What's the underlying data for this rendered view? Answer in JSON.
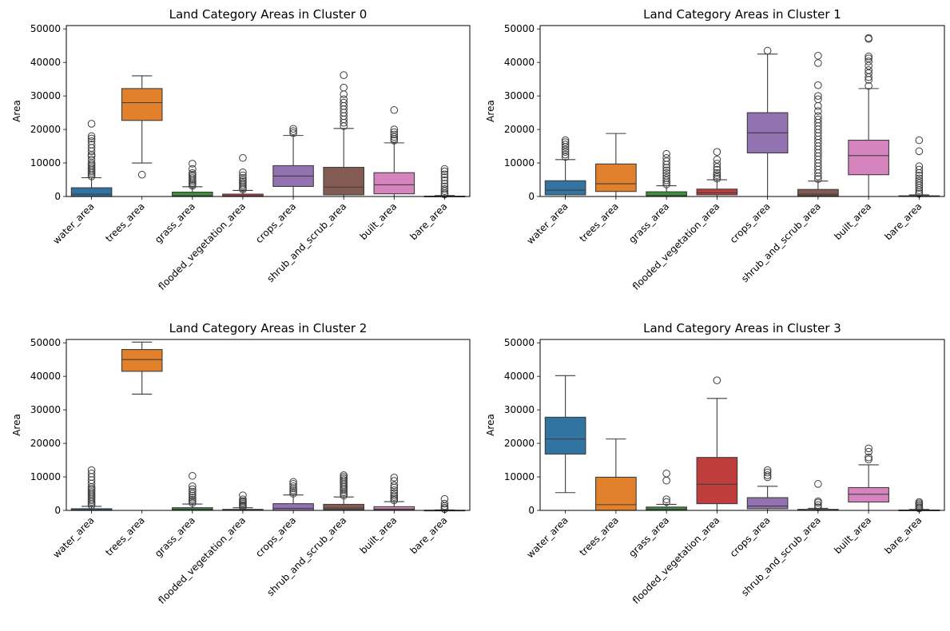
{
  "chart_data": [
    {
      "type": "box",
      "title": "Land Category Areas in Cluster 0",
      "xlabel": "",
      "ylabel": "Area",
      "ylim": [
        0,
        51000
      ],
      "yticks": [
        "0",
        "10000",
        "20000",
        "30000",
        "40000",
        "50000"
      ],
      "ytick_values": [
        0,
        10000,
        20000,
        30000,
        40000,
        50000
      ],
      "categories": [
        "water_area",
        "trees_area",
        "grass_area",
        "flooded_vegetation_area",
        "crops_area",
        "shrub_and_scrub_area",
        "built_area",
        "bare_area"
      ],
      "colors": [
        "#3274a1",
        "#e1812c",
        "#3a923a",
        "#c03d3e",
        "#9372b2",
        "#845b53",
        "#d684bd",
        "#7f7f7f"
      ],
      "boxes": [
        {
          "whisker_low": 0,
          "q1": 0,
          "median": 700,
          "q3": 2600,
          "whisker_high": 5600,
          "outliers": [
            6000,
            6500,
            7000,
            7500,
            8000,
            8500,
            9000,
            9500,
            10000,
            11000,
            12000,
            12500,
            13500,
            14500,
            15500,
            16500,
            17300,
            18000,
            21700
          ]
        },
        {
          "whisker_low": 10000,
          "q1": 22700,
          "median": 28000,
          "q3": 32200,
          "whisker_high": 36000,
          "outliers": [
            6500
          ]
        },
        {
          "whisker_low": 0,
          "q1": 0,
          "median": 200,
          "q3": 1300,
          "whisker_high": 2900,
          "outliers": [
            3200,
            3600,
            4000,
            4500,
            5000,
            5500,
            6000,
            6500,
            7000,
            8200,
            9800
          ]
        },
        {
          "whisker_low": 0,
          "q1": 0,
          "median": 150,
          "q3": 700,
          "whisker_high": 1800,
          "outliers": [
            2100,
            2500,
            3000,
            3500,
            4000,
            4500,
            5000,
            5600,
            6300,
            7200,
            11500
          ]
        },
        {
          "whisker_low": 0,
          "q1": 3000,
          "median": 6100,
          "q3": 9200,
          "whisker_high": 18200,
          "outliers": [
            18900,
            19500,
            20200
          ]
        },
        {
          "whisker_low": 0,
          "q1": 500,
          "median": 2800,
          "q3": 8700,
          "whisker_high": 20300,
          "outliers": [
            21000,
            22000,
            23000,
            24000,
            25000,
            26000,
            27000,
            28000,
            29000,
            30500,
            32500,
            36200
          ]
        },
        {
          "whisker_low": 0,
          "q1": 800,
          "median": 3500,
          "q3": 7100,
          "whisker_high": 16000,
          "outliers": [
            16700,
            17200,
            17800,
            18500,
            19200,
            20000,
            25800
          ]
        },
        {
          "whisker_low": 0,
          "q1": 0,
          "median": 0,
          "q3": 100,
          "whisker_high": 300,
          "outliers": [
            600,
            1000,
            1600,
            2200,
            3000,
            3800,
            4800,
            5700,
            6600,
            7500,
            8200
          ]
        }
      ]
    },
    {
      "type": "box",
      "title": "Land Category Areas in Cluster 1",
      "xlabel": "",
      "ylabel": "Area",
      "ylim": [
        0,
        51000
      ],
      "yticks": [
        "0",
        "10000",
        "20000",
        "30000",
        "40000",
        "50000"
      ],
      "ytick_values": [
        0,
        10000,
        20000,
        30000,
        40000,
        50000
      ],
      "categories": [
        "water_area",
        "trees_area",
        "grass_area",
        "flooded_vegetation_area",
        "crops_area",
        "shrub_and_scrub_area",
        "built_area",
        "bare_area"
      ],
      "colors": [
        "#3274a1",
        "#e1812c",
        "#3a923a",
        "#c03d3e",
        "#9372b2",
        "#845b53",
        "#d684bd",
        "#7f7f7f"
      ],
      "boxes": [
        {
          "whisker_low": 0,
          "q1": 500,
          "median": 1900,
          "q3": 4700,
          "whisker_high": 11000,
          "outliers": [
            11800,
            12500,
            13300,
            14000,
            14800,
            15500,
            16200,
            16800
          ]
        },
        {
          "whisker_low": 0,
          "q1": 1500,
          "median": 3800,
          "q3": 9700,
          "whisker_high": 18800,
          "outliers": []
        },
        {
          "whisker_low": 0,
          "q1": 0,
          "median": 300,
          "q3": 1400,
          "whisker_high": 3200,
          "outliers": [
            3600,
            4200,
            4800,
            5500,
            6200,
            7000,
            7800,
            8600,
            9500,
            10500,
            11500,
            12700
          ]
        },
        {
          "whisker_low": 0,
          "q1": 500,
          "median": 1100,
          "q3": 2200,
          "whisker_high": 5000,
          "outliers": [
            5300,
            5800,
            6400,
            7000,
            8000,
            8800,
            9800,
            11000,
            13300
          ]
        },
        {
          "whisker_low": 0,
          "q1": 13000,
          "median": 19000,
          "q3": 25000,
          "whisker_high": 42500,
          "outliers": [
            43500
          ]
        },
        {
          "whisker_low": 0,
          "q1": 200,
          "median": 700,
          "q3": 2100,
          "whisker_high": 4600,
          "outliers": [
            5200,
            6000,
            7000,
            8000,
            9000,
            10000,
            11000,
            12000,
            13000,
            14000,
            15000,
            16000,
            17000,
            18000,
            19000,
            20000,
            21000,
            22000,
            23000,
            24000,
            25500,
            27000,
            29000,
            30000,
            33200,
            39800,
            42000
          ]
        },
        {
          "whisker_low": 0,
          "q1": 6500,
          "median": 12200,
          "q3": 16800,
          "whisker_high": 32200,
          "outliers": [
            33000,
            34800,
            35600,
            36800,
            37700,
            39000,
            40300,
            41200,
            41800,
            47000,
            47300
          ]
        },
        {
          "whisker_low": 0,
          "q1": 0,
          "median": 0,
          "q3": 200,
          "whisker_high": 500,
          "outliers": [
            800,
            1300,
            1900,
            2600,
            3300,
            4000,
            4700,
            5400,
            6200,
            7000,
            8000,
            9000,
            13500,
            16800
          ]
        }
      ]
    },
    {
      "type": "box",
      "title": "Land Category Areas in Cluster 2",
      "xlabel": "",
      "ylabel": "Area",
      "ylim": [
        0,
        51000
      ],
      "yticks": [
        "0",
        "10000",
        "20000",
        "30000",
        "40000",
        "50000"
      ],
      "ytick_values": [
        0,
        10000,
        20000,
        30000,
        40000,
        50000
      ],
      "categories": [
        "water_area",
        "trees_area",
        "grass_area",
        "flooded_vegetation_area",
        "crops_area",
        "shrub_and_scrub_area",
        "built_area",
        "bare_area"
      ],
      "colors": [
        "#3274a1",
        "#e1812c",
        "#3a923a",
        "#c03d3e",
        "#9372b2",
        "#845b53",
        "#d684bd",
        "#7f7f7f"
      ],
      "boxes": [
        {
          "whisker_low": 0,
          "q1": 0,
          "median": 100,
          "q3": 500,
          "whisker_high": 1200,
          "outliers": [
            1500,
            2000,
            2500,
            3000,
            3500,
            4000,
            4500,
            5000,
            5500,
            6000,
            6500,
            7000,
            8000,
            9000,
            10000,
            11000,
            12000
          ]
        },
        {
          "whisker_low": 34700,
          "q1": 41500,
          "median": 45000,
          "q3": 48000,
          "whisker_high": 50200,
          "outliers": []
        },
        {
          "whisker_low": 0,
          "q1": 100,
          "median": 300,
          "q3": 800,
          "whisker_high": 1900,
          "outliers": [
            2200,
            2700,
            3200,
            3800,
            4400,
            5000,
            5600,
            6300,
            7200,
            10300
          ]
        },
        {
          "whisker_low": 0,
          "q1": 0,
          "median": 100,
          "q3": 300,
          "whisker_high": 800,
          "outliers": [
            1000,
            1300,
            1600,
            2000,
            2400,
            2800,
            3300,
            4500
          ]
        },
        {
          "whisker_low": 0,
          "q1": 0,
          "median": 600,
          "q3": 2000,
          "whisker_high": 4600,
          "outliers": [
            5000,
            5500,
            6000,
            6600,
            7200,
            7900,
            8500
          ]
        },
        {
          "whisker_low": 0,
          "q1": 200,
          "median": 700,
          "q3": 1800,
          "whisker_high": 4000,
          "outliers": [
            4400,
            4900,
            5400,
            6000,
            6500,
            7000,
            7500,
            8000,
            8500,
            9000,
            9500,
            10000,
            10500
          ]
        },
        {
          "whisker_low": 0,
          "q1": 100,
          "median": 400,
          "q3": 1100,
          "whisker_high": 2600,
          "outliers": [
            3000,
            3500,
            4000,
            4500,
            5200,
            6000,
            6800,
            7500,
            8800,
            9800
          ]
        },
        {
          "whisker_low": 0,
          "q1": 0,
          "median": 0,
          "q3": 50,
          "whisker_high": 150,
          "outliers": [
            400,
            800,
            1300,
            2000,
            3400
          ]
        }
      ]
    },
    {
      "type": "box",
      "title": "Land Category Areas in Cluster 3",
      "xlabel": "",
      "ylabel": "Area",
      "ylim": [
        0,
        51000
      ],
      "yticks": [
        "0",
        "10000",
        "20000",
        "30000",
        "40000",
        "50000"
      ],
      "ytick_values": [
        0,
        10000,
        20000,
        30000,
        40000,
        50000
      ],
      "categories": [
        "water_area",
        "trees_area",
        "grass_area",
        "flooded_vegetation_area",
        "crops_area",
        "shrub_and_scrub_area",
        "built_area",
        "bare_area"
      ],
      "colors": [
        "#3274a1",
        "#e1812c",
        "#3a923a",
        "#c03d3e",
        "#9372b2",
        "#845b53",
        "#d684bd",
        "#7f7f7f"
      ],
      "boxes": [
        {
          "whisker_low": 5300,
          "q1": 16800,
          "median": 21300,
          "q3": 27800,
          "whisker_high": 40200,
          "outliers": []
        },
        {
          "whisker_low": 0,
          "q1": 0,
          "median": 1700,
          "q3": 9900,
          "whisker_high": 21300,
          "outliers": []
        },
        {
          "whisker_low": 0,
          "q1": 0,
          "median": 300,
          "q3": 1000,
          "whisker_high": 1800,
          "outliers": [
            2500,
            3300,
            8900,
            11000
          ]
        },
        {
          "whisker_low": 0,
          "q1": 2000,
          "median": 7800,
          "q3": 15800,
          "whisker_high": 33400,
          "outliers": [
            38800
          ]
        },
        {
          "whisker_low": 0,
          "q1": 500,
          "median": 1300,
          "q3": 3800,
          "whisker_high": 7200,
          "outliers": [
            9900,
            10500,
            11300,
            12000
          ]
        },
        {
          "whisker_low": 0,
          "q1": 0,
          "median": 100,
          "q3": 300,
          "whisker_high": 600,
          "outliers": [
            900,
            1600,
            2300,
            2700,
            7900
          ]
        },
        {
          "whisker_low": 0,
          "q1": 2500,
          "median": 4800,
          "q3": 6800,
          "whisker_high": 13600,
          "outliers": [
            15200,
            15800,
            17500,
            18500
          ]
        },
        {
          "whisker_low": 0,
          "q1": 0,
          "median": 0,
          "q3": 100,
          "whisker_high": 300,
          "outliers": [
            600,
            900,
            1300,
            1700,
            2100,
            2500
          ]
        }
      ]
    }
  ]
}
